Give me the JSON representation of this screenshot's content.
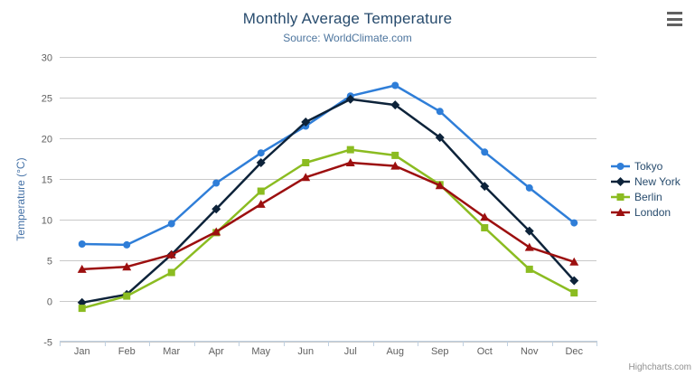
{
  "chart_data": {
    "type": "line",
    "title": "Monthly Average Temperature",
    "subtitle": "Source: WorldClimate.com",
    "xlabel": "",
    "ylabel": "Temperature (°C)",
    "categories": [
      "Jan",
      "Feb",
      "Mar",
      "Apr",
      "May",
      "Jun",
      "Jul",
      "Aug",
      "Sep",
      "Oct",
      "Nov",
      "Dec"
    ],
    "ylim": [
      -5,
      30
    ],
    "yticks": [
      -5,
      0,
      5,
      10,
      15,
      20,
      25,
      30
    ],
    "grid": true,
    "legend_position": "right",
    "series": [
      {
        "name": "Tokyo",
        "color": "#2f7ed8",
        "marker": "circle",
        "values": [
          7.0,
          6.9,
          9.5,
          14.5,
          18.2,
          21.5,
          25.2,
          26.5,
          23.3,
          18.3,
          13.9,
          9.6
        ]
      },
      {
        "name": "New York",
        "color": "#0d233a",
        "marker": "diamond",
        "values": [
          -0.2,
          0.8,
          5.7,
          11.3,
          17.0,
          22.0,
          24.8,
          24.1,
          20.1,
          14.1,
          8.6,
          2.5
        ]
      },
      {
        "name": "Berlin",
        "color": "#8bbc21",
        "marker": "square",
        "values": [
          -0.9,
          0.6,
          3.5,
          8.4,
          13.5,
          17.0,
          18.6,
          17.9,
          14.3,
          9.0,
          3.9,
          1.0
        ]
      },
      {
        "name": "London",
        "color": "#9c0f0f",
        "marker": "triangle",
        "values": [
          3.9,
          4.2,
          5.7,
          8.5,
          11.9,
          15.2,
          17.0,
          16.6,
          14.2,
          10.3,
          6.6,
          4.8
        ]
      }
    ],
    "credits": "Highcharts.com",
    "colors": {
      "title": "#274b6d",
      "subtitle": "#4d759e",
      "axis_labels": "#606060",
      "y_axis_title": "#4572a7",
      "gridline": "#c9c9c9",
      "axis_line": "#c0d0e0",
      "legend_text": "#274b6d",
      "credits_text": "#909090",
      "export_icon": "#616161"
    },
    "icons": [
      "hamburger-icon"
    ]
  }
}
